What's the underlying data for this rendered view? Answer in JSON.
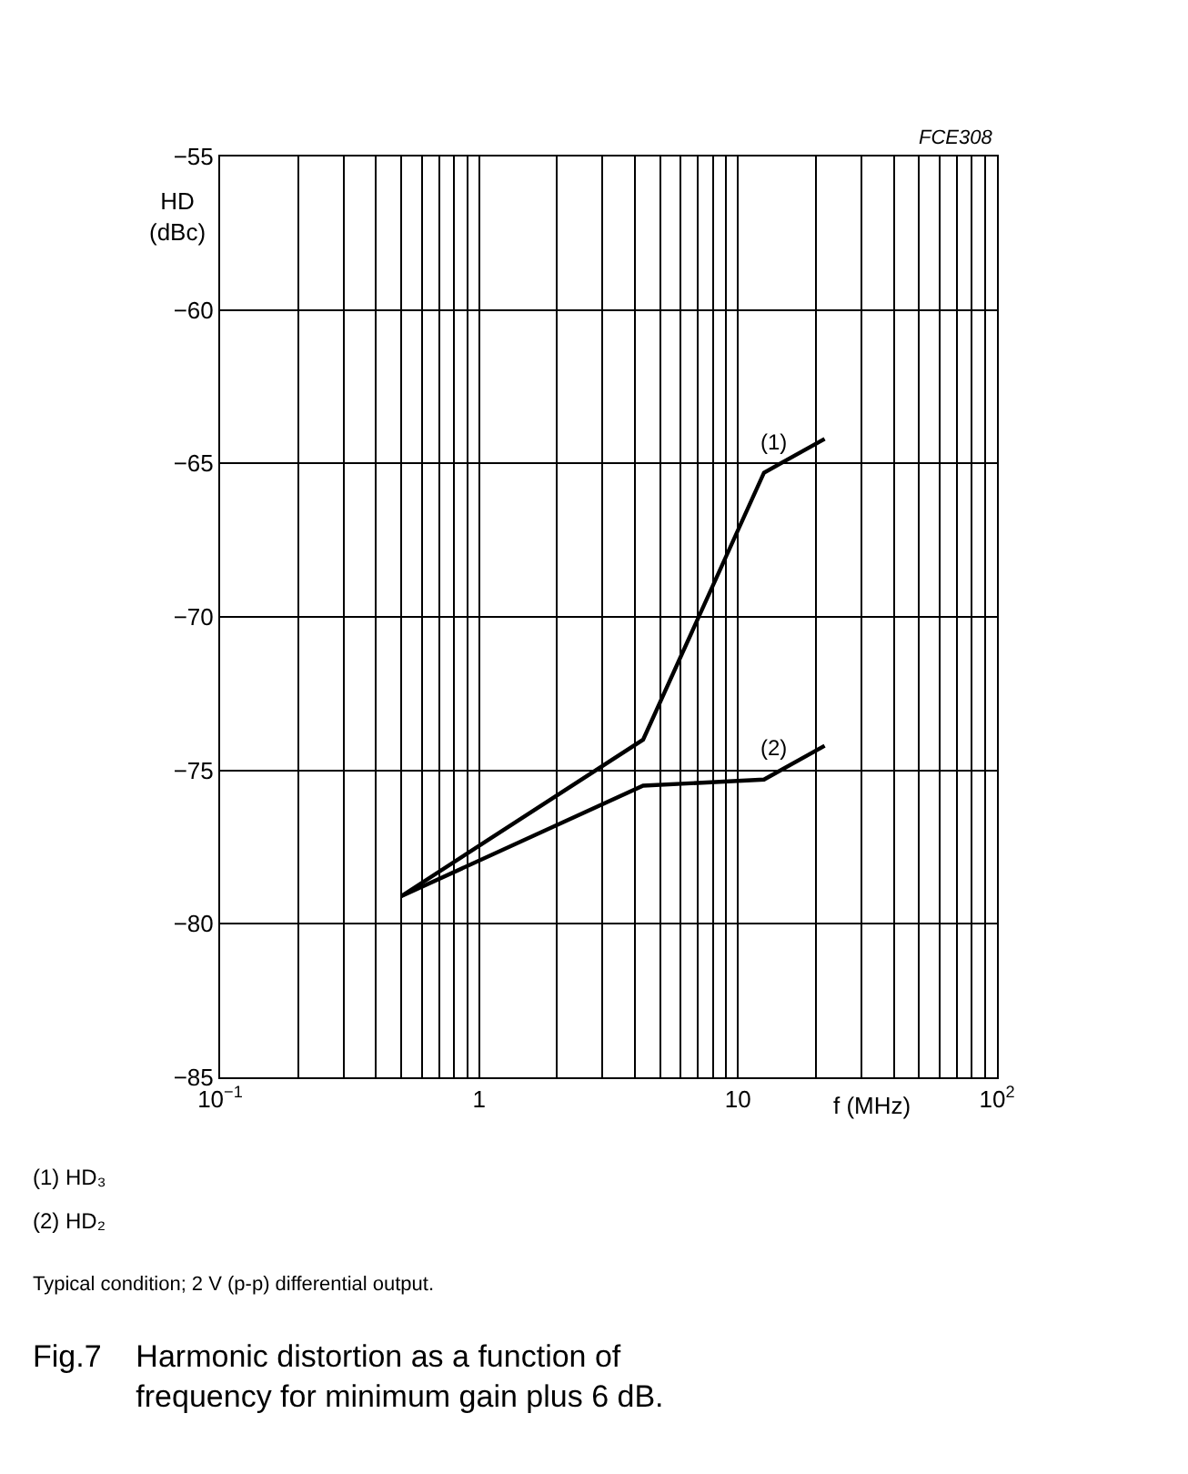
{
  "chart_data": {
    "type": "line",
    "title": "Fig.7    Harmonic distortion as a function of\nfrequency for minimum gain plus 6 dB.",
    "xlabel": "f (MHz)",
    "ylabel": "HD\n(dBc)",
    "log": "x",
    "grid": true,
    "marker": "none",
    "line_style": "solid",
    "xlim": [
      0.1,
      100
    ],
    "ylim": [
      -85,
      -55
    ],
    "xticks": [
      {
        "value": 0.1,
        "label": "10$^{−1}$"
      },
      {
        "value": 0.2,
        "label": null
      },
      {
        "value": 0.3,
        "label": null
      },
      {
        "value": 0.4,
        "label": null
      },
      {
        "value": 0.5,
        "label": null
      },
      {
        "value": 0.6,
        "label": null
      },
      {
        "value": 0.7,
        "label": null
      },
      {
        "value": 0.8,
        "label": null
      },
      {
        "value": 0.9,
        "label": null
      },
      1,
      {
        "value": 2,
        "label": null
      },
      {
        "value": 3,
        "label": null
      },
      {
        "value": 4,
        "label": null
      },
      {
        "value": 5,
        "label": null
      },
      {
        "value": 6,
        "label": null
      },
      {
        "value": 7,
        "label": null
      },
      {
        "value": 8,
        "label": null
      },
      {
        "value": 9,
        "label": null
      },
      10,
      {
        "value": 20,
        "label": null
      },
      {
        "value": 30,
        "label": null
      },
      {
        "value": 40,
        "label": null
      },
      {
        "value": 50,
        "label": null
      },
      {
        "value": 60,
        "label": null
      },
      {
        "value": 70,
        "label": null
      },
      {
        "value": 80,
        "label": null
      },
      {
        "value": 90,
        "label": null
      },
      {
        "value": 100,
        "label": "10$^{2}$"
      }
    ],
    "yticks": [
      {
        "value": -85,
        "label": "−85"
      },
      {
        "value": -80,
        "label": "−80"
      },
      {
        "value": -75,
        "label": "−75"
      },
      {
        "value": -70,
        "label": "−70"
      },
      {
        "value": -65,
        "label": "−65"
      },
      {
        "value": -60,
        "label": "−60"
      },
      {
        "value": -55,
        "label": "−55"
      }
    ],
    "series": [
      {
        "color": "#000000",
        "x": [
          0.5,
          4.3,
          12.6,
          21.6
        ],
        "values": [
          -79.1,
          -74.0,
          -65.3,
          -64.2
        ]
      },
      {
        "color": "#000000",
        "x": [
          0.5,
          4.3,
          12.6,
          21.6
        ],
        "values": [
          -79.1,
          -75.5,
          -75.3,
          -74.2
        ]
      }
    ],
    "annotations": [
      {
        "text": "(1)",
        "x": 12.6,
        "y": -65.3
      },
      {
        "text": "(2)",
        "x": 12.6,
        "y": -75.3
      },
      "FCE308",
      "(1) HD₃",
      "(2) HD₂",
      "Typical condition; 2 V (p-p) differential output."
    ]
  }
}
